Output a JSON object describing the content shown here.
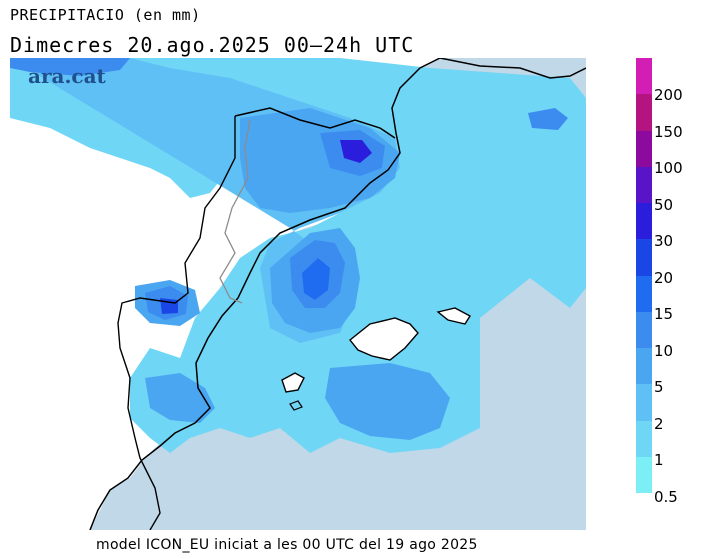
{
  "header": {
    "title": "PRECIPITACIO (en mm)",
    "subtitle": "Dimecres  20.ago.2025 00—24h UTC"
  },
  "footer": {
    "text": "model ICON_EU iniciat a les 00 UTC del 19 ago 2025"
  },
  "watermark": "ara.cat",
  "legend": {
    "labels": [
      "200",
      "150",
      "100",
      "50",
      "30",
      "20",
      "15",
      "10",
      "5",
      "2",
      "1",
      "0.5"
    ],
    "colors": [
      "#d21eb4",
      "#b4147f",
      "#8c0a9e",
      "#5a14c8",
      "#2a1edc",
      "#1a46e6",
      "#1f6cf0",
      "#3c8cf0",
      "#4ba6f2",
      "#5fc0f5",
      "#70d6f5",
      "#7ceef6"
    ]
  },
  "map": {
    "sea_color": "#c0d8e8",
    "land_color": "#ffffff"
  }
}
